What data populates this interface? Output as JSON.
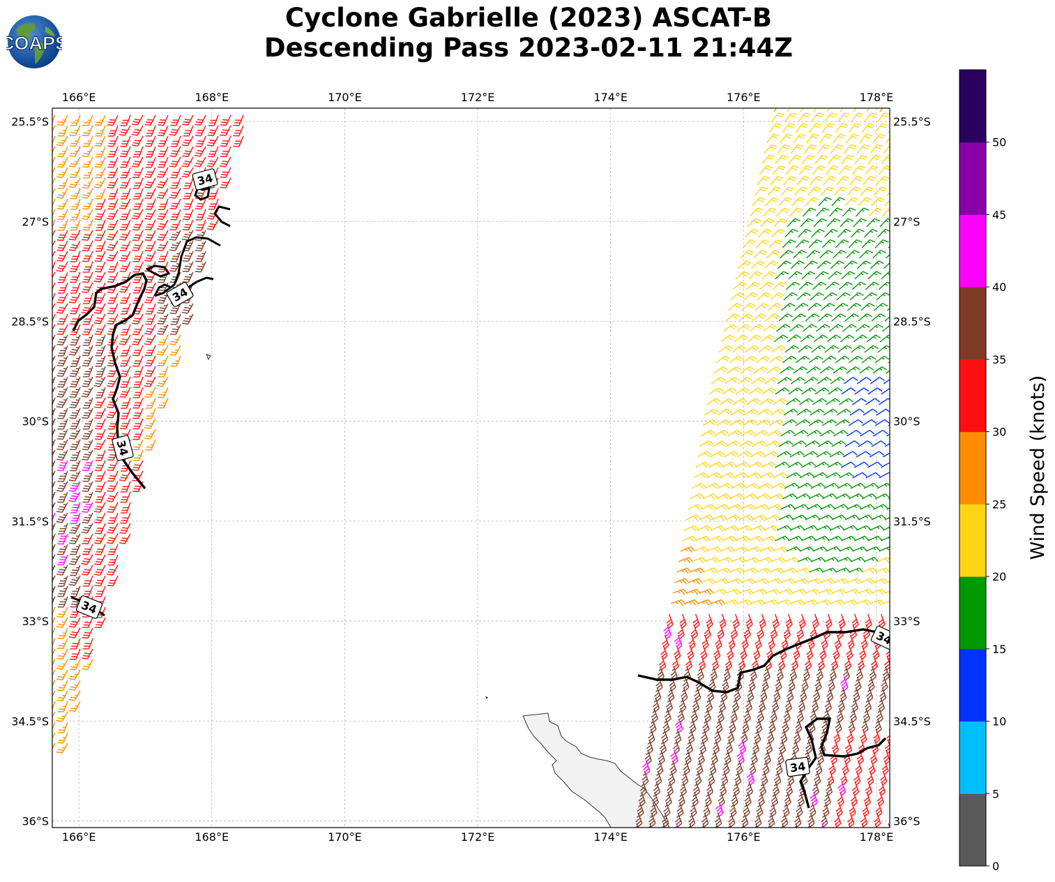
{
  "title": {
    "line1": "Cyclone Gabrielle (2023) ASCAT-B",
    "line2": "Descending Pass 2023-02-11 21:44Z"
  },
  "logo": {
    "text": "COAPS",
    "icon": "globe-icon"
  },
  "map": {
    "lon_range": [
      165.6,
      178.2
    ],
    "lat_range": [
      -36.1,
      -25.3
    ],
    "lon_ticks": [
      166,
      168,
      170,
      172,
      174,
      176,
      178
    ],
    "lat_ticks": [
      -25.5,
      -27,
      -28.5,
      -30,
      -31.5,
      -33,
      -34.5,
      -36
    ],
    "lon_labels": [
      "166°E",
      "168°E",
      "170°E",
      "172°E",
      "174°E",
      "176°E",
      "178°E"
    ],
    "lat_labels": [
      "25.5°S",
      "27°S",
      "28.5°S",
      "30°S",
      "31.5°S",
      "33°S",
      "34.5°S",
      "36°S"
    ],
    "grid": true,
    "contour_label": "34",
    "land_color": "#f2f2f2"
  },
  "colorbar": {
    "label": "Wind Speed (knots)",
    "ticks": [
      "0",
      "5",
      "10",
      "15",
      "20",
      "25",
      "30",
      "35",
      "40",
      "45",
      "50"
    ],
    "bins": [
      {
        "min": 0,
        "max": 5,
        "color": "#5a5a5a"
      },
      {
        "min": 5,
        "max": 10,
        "color": "#00bfff"
      },
      {
        "min": 10,
        "max": 15,
        "color": "#0033ff"
      },
      {
        "min": 15,
        "max": 20,
        "color": "#009900"
      },
      {
        "min": 20,
        "max": 25,
        "color": "#ffd514"
      },
      {
        "min": 25,
        "max": 30,
        "color": "#ff8c00"
      },
      {
        "min": 30,
        "max": 35,
        "color": "#ff1010"
      },
      {
        "min": 35,
        "max": 40,
        "color": "#7f3b27"
      },
      {
        "min": 40,
        "max": 45,
        "color": "#ff00ff"
      },
      {
        "min": 45,
        "max": 50,
        "color": "#8800aa"
      },
      {
        "min": 50,
        "max": 55,
        "color": "#2a0060"
      }
    ]
  }
}
